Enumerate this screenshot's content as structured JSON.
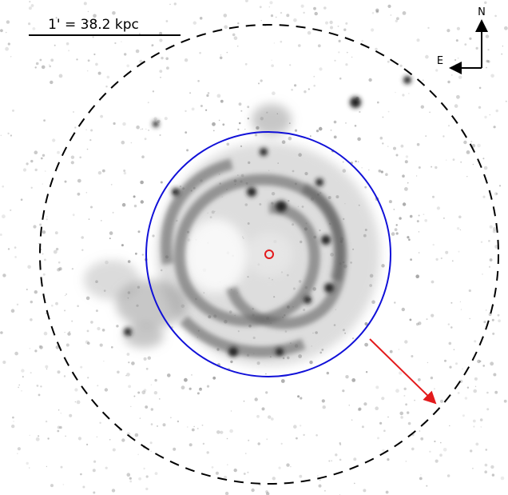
{
  "scale_bar": {
    "label": "1' = 38.2 kpc"
  },
  "compass": {
    "north": "N",
    "east": "E"
  }
}
